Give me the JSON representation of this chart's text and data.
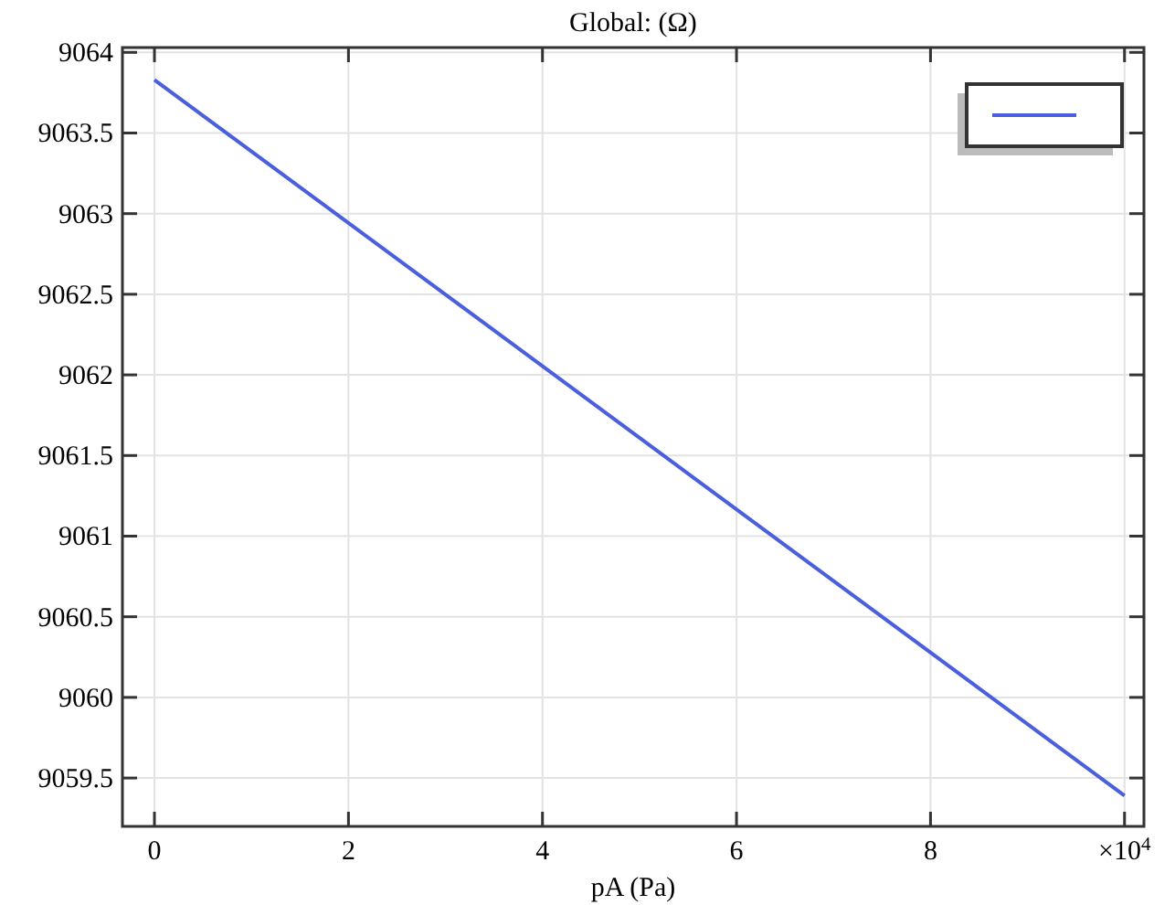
{
  "chart_data": {
    "type": "line",
    "title": "Global: (Ω)",
    "xlabel": "pA (Pa)",
    "x": [
      0,
      10
    ],
    "series": [
      {
        "color": "#4a5ee0",
        "values": [
          9063.83,
          9059.39
        ]
      }
    ],
    "xlim": [
      -0.33,
      10.2
    ],
    "xticks": [
      0,
      2,
      4,
      6,
      8,
      {
        "value": 10,
        "label": "×10$^{4}$"
      }
    ],
    "ylim": [
      9059.2,
      9064.03
    ],
    "yticks": [
      9059.5,
      9060,
      9060.5,
      9061,
      9061.5,
      9062,
      9062.5,
      9063,
      9063.5,
      9064
    ],
    "grid": true,
    "marker": "none",
    "line_style": "solid"
  }
}
